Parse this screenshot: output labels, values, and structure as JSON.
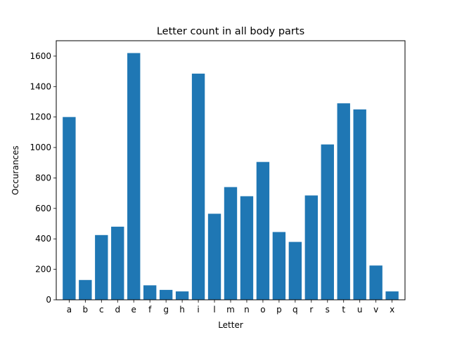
{
  "chart_data": {
    "type": "bar",
    "title": "Letter count in all body parts",
    "xlabel": "Letter",
    "ylabel": "Occurances",
    "categories": [
      "a",
      "b",
      "c",
      "d",
      "e",
      "f",
      "g",
      "h",
      "i",
      "l",
      "m",
      "n",
      "o",
      "p",
      "q",
      "r",
      "s",
      "t",
      "u",
      "v",
      "x"
    ],
    "values": [
      1200,
      130,
      425,
      480,
      1620,
      95,
      65,
      55,
      1485,
      565,
      740,
      680,
      905,
      445,
      380,
      685,
      1020,
      1290,
      1250,
      225,
      55
    ],
    "ylim": [
      0,
      1701
    ],
    "yticks": [
      0,
      200,
      400,
      600,
      800,
      1000,
      1200,
      1400,
      1600
    ],
    "bar_color": "#1f77b4",
    "grid": false,
    "legend": "none"
  }
}
